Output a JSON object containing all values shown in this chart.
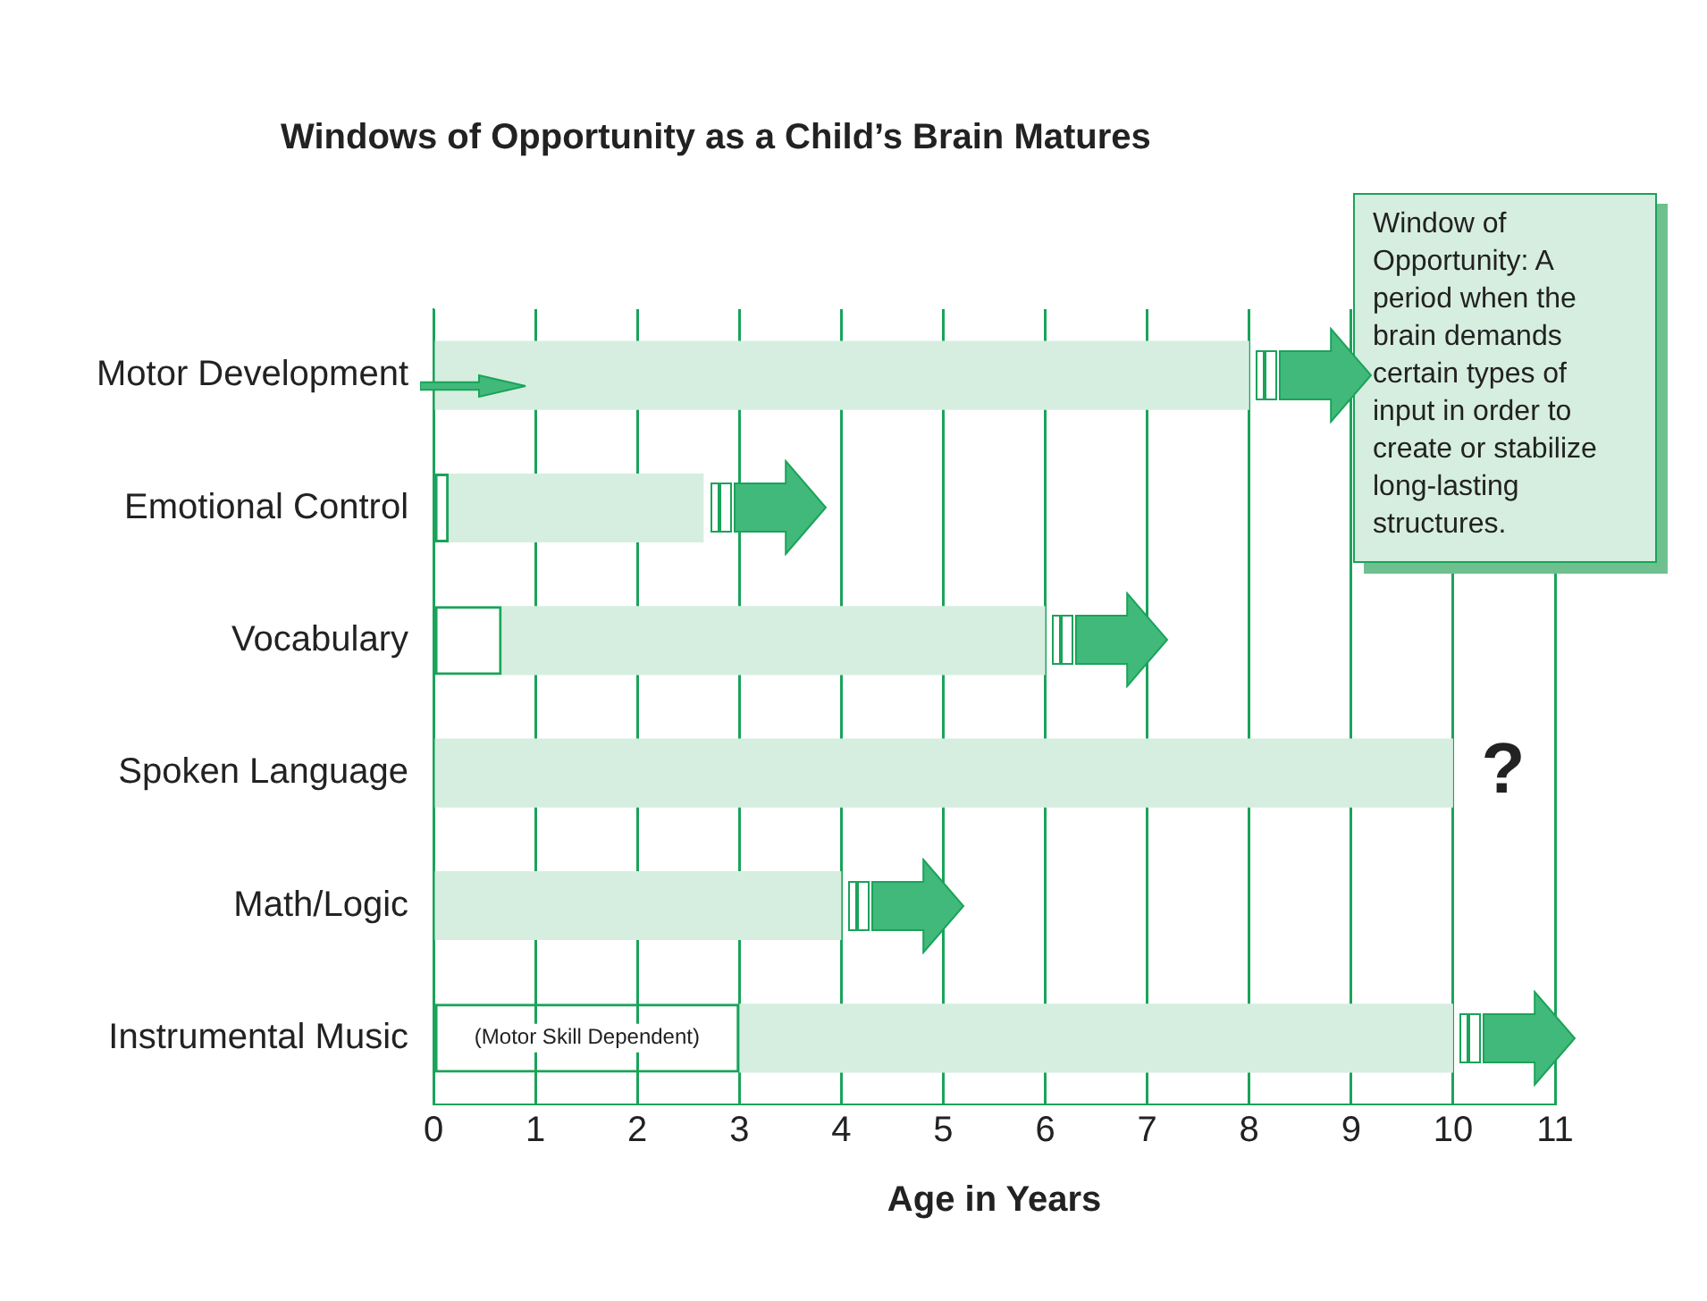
{
  "chart_data": {
    "type": "bar",
    "orientation": "horizontal",
    "stacked": true,
    "title": "Windows of Opportunity as a Child’s Brain Matures",
    "xlabel": "Age in Years",
    "categories": [
      "Motor Development",
      "Emotional Control",
      "Vocabulary",
      "Spoken Language",
      "Math/Logic",
      "Instrumental Music"
    ],
    "series": [
      {
        "color": "#1aa35a",
        "values": [
          0,
          0.15,
          0.67,
          0,
          0,
          3
        ]
      },
      {
        "color": "#d6eedf",
        "values": [
          8,
          2.5,
          5.33,
          10,
          4,
          7
        ]
      }
    ],
    "xlim": [
      0,
      11
    ],
    "xticks": [
      0,
      1,
      2,
      3,
      4,
      5,
      6,
      7,
      8,
      9,
      10,
      11
    ],
    "grid": "x",
    "legend": false,
    "annotations": [
      "Window of Opportunity: A period when the brain demands certain types of input in order to create or stabilize long-lasting structures.",
      "(Motor Skill Dependent)",
      "?"
    ]
  }
}
